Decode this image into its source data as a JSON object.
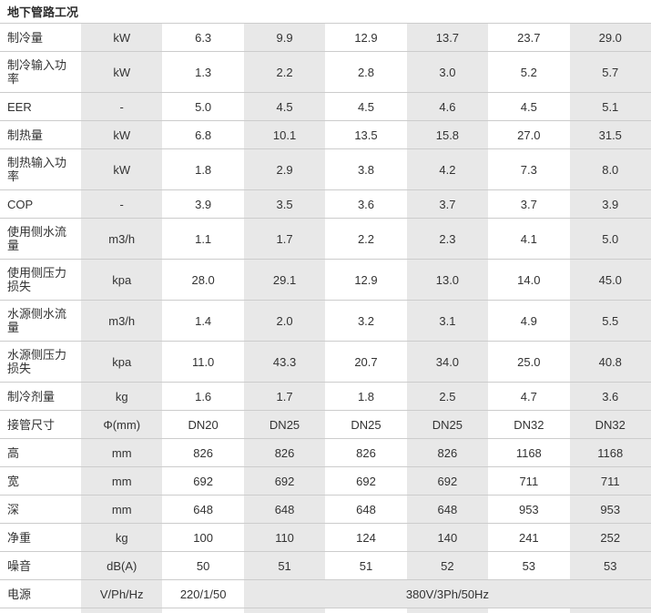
{
  "page": {
    "title": "地下管路工况"
  },
  "table": {
    "shade_color": "#e8e8e8",
    "border_color": "#cccccc",
    "rows": [
      {
        "label": "制冷量",
        "unit": "kW",
        "values": [
          "6.3",
          "9.9",
          "12.9",
          "13.7",
          "23.7",
          "29.0"
        ]
      },
      {
        "label": "制冷输入功率",
        "unit": "kW",
        "values": [
          "1.3",
          "2.2",
          "2.8",
          "3.0",
          "5.2",
          "5.7"
        ]
      },
      {
        "label": "EER",
        "unit": "-",
        "values": [
          "5.0",
          "4.5",
          "4.5",
          "4.6",
          "4.5",
          "5.1"
        ]
      },
      {
        "label": "制热量",
        "unit": "kW",
        "values": [
          "6.8",
          "10.1",
          "13.5",
          "15.8",
          "27.0",
          "31.5"
        ]
      },
      {
        "label": "制热输入功率",
        "unit": "kW",
        "values": [
          "1.8",
          "2.9",
          "3.8",
          "4.2",
          "7.3",
          "8.0"
        ]
      },
      {
        "label": "COP",
        "unit": "-",
        "values": [
          "3.9",
          "3.5",
          "3.6",
          "3.7",
          "3.7",
          "3.9"
        ]
      },
      {
        "label": "使用侧水流量",
        "unit": "m3/h",
        "values": [
          "1.1",
          "1.7",
          "2.2",
          "2.3",
          "4.1",
          "5.0"
        ]
      },
      {
        "label": "使用侧压力损失",
        "unit": "kpa",
        "values": [
          "28.0",
          "29.1",
          "12.9",
          "13.0",
          "14.0",
          "45.0"
        ]
      },
      {
        "label": "水源侧水流量",
        "unit": "m3/h",
        "values": [
          "1.4",
          "2.0",
          "3.2",
          "3.1",
          "4.9",
          "5.5"
        ]
      },
      {
        "label": "水源侧压力损失",
        "unit": "kpa",
        "values": [
          "11.0",
          "43.3",
          "20.7",
          "34.0",
          "25.0",
          "40.8"
        ]
      },
      {
        "label": "制冷剂量",
        "unit": "kg",
        "values": [
          "1.6",
          "1.7",
          "1.8",
          "2.5",
          "4.7",
          "3.6"
        ]
      },
      {
        "label": "接管尺寸",
        "unit": "Φ(mm)",
        "values": [
          "DN20",
          "DN25",
          "DN25",
          "DN25",
          "DN32",
          "DN32"
        ]
      },
      {
        "label": "高",
        "unit": "mm",
        "values": [
          "826",
          "826",
          "826",
          "826",
          "1168",
          "1168"
        ]
      },
      {
        "label": "宽",
        "unit": "mm",
        "values": [
          "692",
          "692",
          "692",
          "692",
          "711",
          "711"
        ]
      },
      {
        "label": "深",
        "unit": "mm",
        "values": [
          "648",
          "648",
          "648",
          "648",
          "953",
          "953"
        ]
      },
      {
        "label": "净重",
        "unit": "kg",
        "values": [
          "100",
          "110",
          "124",
          "140",
          "241",
          "252"
        ]
      },
      {
        "label": "噪音",
        "unit": "dB(A)",
        "values": [
          "50",
          "51",
          "51",
          "52",
          "53",
          "53"
        ]
      },
      {
        "label": "电源",
        "unit": "V/Ph/Hz",
        "values": [
          "220/1/50"
        ],
        "merged": {
          "text": "380V/3Ph/50Hz",
          "colspan": 5,
          "shaded": true
        }
      }
    ]
  }
}
